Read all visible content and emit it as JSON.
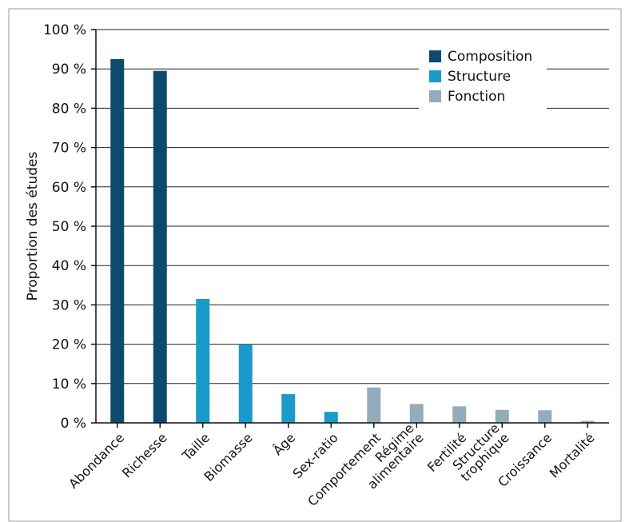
{
  "chart_data": {
    "type": "bar",
    "ylabel": "Proportion des études",
    "xlabel": "",
    "ylim": [
      0,
      100
    ],
    "yticks": [
      0,
      10,
      20,
      30,
      40,
      50,
      60,
      70,
      80,
      90,
      100
    ],
    "ytick_labels": [
      "0 %",
      "10 %",
      "20 %",
      "30 %",
      "40 %",
      "50 %",
      "60 %",
      "70 %",
      "80 %",
      "90 %",
      "100 %"
    ],
    "grid": true,
    "legend_position": "top-right",
    "groups": [
      {
        "name": "Composition",
        "color": "#0d4a6e"
      },
      {
        "name": "Structure",
        "color": "#1a9ac9"
      },
      {
        "name": "Fonction",
        "color": "#93acb9"
      }
    ],
    "bars": [
      {
        "label": [
          "Abondance"
        ],
        "value": 92.5,
        "group": "Composition"
      },
      {
        "label": [
          "Richesse"
        ],
        "value": 89.5,
        "group": "Composition"
      },
      {
        "label": [
          "Taille"
        ],
        "value": 31.5,
        "group": "Structure"
      },
      {
        "label": [
          "Biomasse"
        ],
        "value": 20,
        "group": "Structure"
      },
      {
        "label": [
          "Âge"
        ],
        "value": 7.3,
        "group": "Structure"
      },
      {
        "label": [
          "Sex-ratio"
        ],
        "value": 2.8,
        "group": "Structure"
      },
      {
        "label": [
          "Comportement"
        ],
        "value": 9,
        "group": "Fonction"
      },
      {
        "label": [
          "Régime",
          "alimentaire"
        ],
        "value": 4.8,
        "group": "Fonction"
      },
      {
        "label": [
          "Fertilité"
        ],
        "value": 4.2,
        "group": "Fonction"
      },
      {
        "label": [
          "Structure",
          "trophique"
        ],
        "value": 3.3,
        "group": "Fonction"
      },
      {
        "label": [
          "Croissance"
        ],
        "value": 3.2,
        "group": "Fonction"
      },
      {
        "label": [
          "Mortalité"
        ],
        "value": 0.5,
        "group": "Fonction"
      }
    ]
  }
}
